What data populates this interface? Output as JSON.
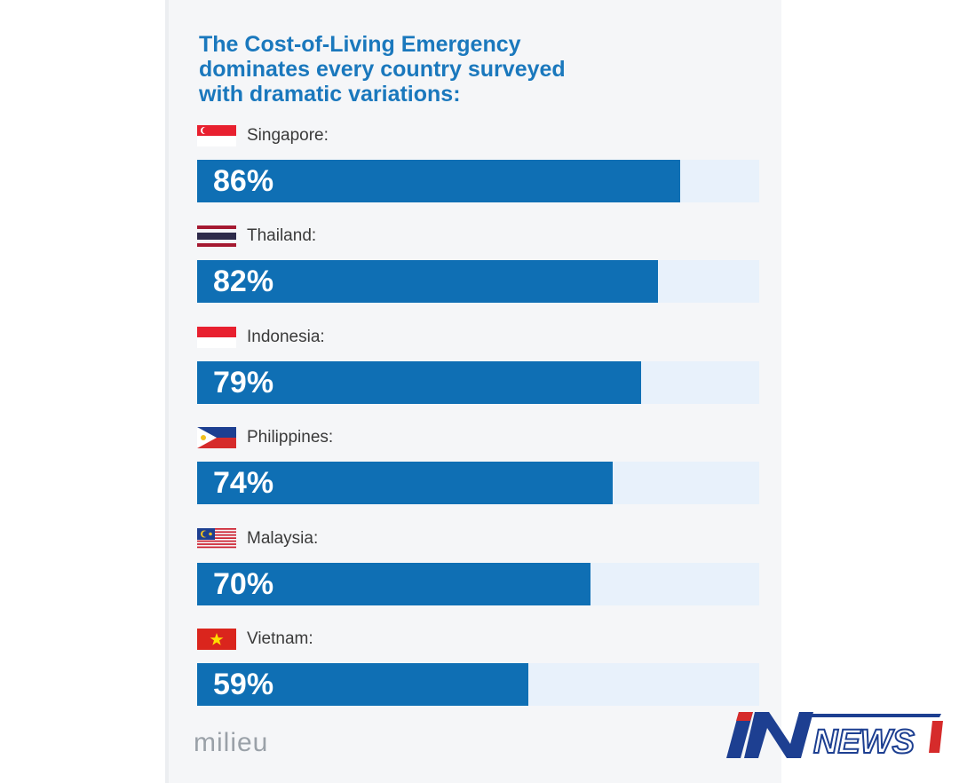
{
  "chart_data": {
    "type": "bar",
    "orientation": "horizontal",
    "title_lines": [
      "The Cost-of-Living Emergency",
      "dominates every country surveyed",
      "with dramatic variations:"
    ],
    "categories": [
      "Singapore:",
      "Thailand:",
      "Indonesia:",
      "Philippines:",
      "Malaysia:",
      "Vietnam:"
    ],
    "values": [
      86,
      82,
      79,
      74,
      70,
      59
    ],
    "value_labels": [
      "86%",
      "82%",
      "79%",
      "74%",
      "70%",
      "59%"
    ],
    "flags": [
      "singapore-flag-icon",
      "thailand-flag-icon",
      "indonesia-flag-icon",
      "philippines-flag-icon",
      "malaysia-flag-icon",
      "vietnam-flag-icon"
    ],
    "xlim": [
      0,
      100
    ],
    "colors": {
      "bar": "#0f6fb4",
      "track": "#e8f1fb",
      "title": "#1a78bd"
    }
  },
  "footer": {
    "brand": "milieu"
  },
  "watermark": {
    "logo_text": "IN NEWS"
  }
}
